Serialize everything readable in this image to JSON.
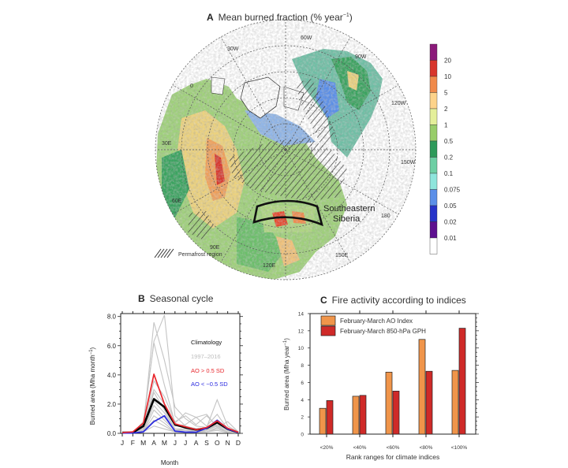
{
  "panel_a": {
    "letter": "A",
    "title": "Mean burned fraction (% year",
    "title_sup": "−1",
    "title_close": ")",
    "longitude_labels": [
      "60W",
      "30W",
      "90W",
      "0",
      "120W",
      "30E",
      "150W",
      "60E",
      "180",
      "90E",
      "150E",
      "120E"
    ],
    "region_label_line1": "Southeastern",
    "region_label_line2": "Siberia",
    "permafrost_legend": "Permafrost region",
    "colorbar": {
      "labels": [
        "20",
        "10",
        "5",
        "2",
        "1",
        "0.5",
        "0.2",
        "0.1",
        "0.075",
        "0.05",
        "0.02",
        "0.01"
      ],
      "colors": [
        "#8b1a7a",
        "#d8352c",
        "#f08a4b",
        "#fdd38a",
        "#e4ef9a",
        "#98cd6a",
        "#2e9a5a",
        "#6dcfa4",
        "#8ee5dc",
        "#5b8fe8",
        "#2633c9",
        "#5d0f8f",
        "#ffffff"
      ]
    }
  },
  "chart_data": [
    {
      "type": "line",
      "panel": "B",
      "title": "Seasonal cycle",
      "xlabel": "Month",
      "ylabel": "Burned area (Mha month",
      "ylabel_sup": "−1",
      "ylabel_close": ")",
      "categories": [
        "J",
        "F",
        "M",
        "A",
        "M",
        "J",
        "J",
        "A",
        "S",
        "O",
        "N",
        "D"
      ],
      "ylim": [
        0,
        8.2
      ],
      "yticks": [
        "0.0",
        "2.0",
        "4.0",
        "6.0",
        "8.0"
      ],
      "ytick_values": [
        0,
        2,
        4,
        6,
        8
      ],
      "legend": [
        {
          "label": "Climatology",
          "color": "#111111"
        },
        {
          "label": "1997–2016",
          "color": "#bdbdbd"
        },
        {
          "label": "AO > 0.5 SD",
          "color": "#e8282e"
        },
        {
          "label": "AO < −0.5 SD",
          "color": "#2a2ae0"
        }
      ],
      "series": [
        {
          "name": "Climatology",
          "color": "#000000",
          "values": [
            0.05,
            0.05,
            0.5,
            2.35,
            1.8,
            0.6,
            0.4,
            0.25,
            0.35,
            0.75,
            0.3,
            0.05
          ]
        },
        {
          "name": "AO > 0.5 SD",
          "color": "#e8282e",
          "values": [
            0.05,
            0.1,
            0.7,
            4.05,
            2.0,
            0.65,
            0.45,
            0.25,
            0.4,
            0.85,
            0.35,
            0.08
          ]
        },
        {
          "name": "AO < −0.5 SD",
          "color": "#2a2ae0",
          "values": [
            0.02,
            0.02,
            0.1,
            0.8,
            1.2,
            0.15,
            0.08,
            0.08,
            0.35,
            0.9,
            0.3,
            0.05
          ]
        }
      ],
      "years": [
        [
          0.05,
          0.05,
          0.4,
          7.6,
          5.0,
          1.8,
          1.0,
          0.5,
          0.4,
          2.3,
          0.5,
          0.1
        ],
        [
          0.05,
          0.08,
          0.6,
          6.3,
          8.1,
          1.2,
          0.5,
          0.3,
          0.3,
          0.6,
          0.2,
          0.05
        ],
        [
          0.05,
          0.05,
          0.8,
          6.2,
          3.3,
          0.7,
          1.4,
          1.1,
          1.3,
          0.4,
          0.8,
          0.1
        ],
        [
          0.02,
          0.05,
          0.3,
          3.6,
          2.5,
          0.8,
          1.2,
          0.6,
          1.2,
          0.5,
          0.3,
          0.05
        ],
        [
          0.02,
          0.03,
          0.3,
          3.0,
          2.0,
          0.5,
          0.6,
          1.1,
          0.5,
          1.3,
          0.3,
          0.05
        ],
        [
          0.02,
          0.02,
          0.3,
          2.8,
          1.6,
          0.3,
          0.3,
          0.2,
          0.3,
          0.9,
          0.3,
          0.05
        ],
        [
          0.02,
          0.02,
          0.2,
          2.2,
          1.4,
          0.3,
          0.2,
          0.2,
          0.2,
          0.8,
          0.2,
          0.05
        ],
        [
          0.02,
          0.02,
          0.2,
          1.9,
          1.1,
          0.2,
          0.2,
          0.1,
          0.2,
          0.6,
          0.2,
          0.02
        ],
        [
          0.02,
          0.02,
          0.1,
          1.6,
          0.9,
          0.2,
          0.1,
          0.1,
          0.2,
          0.5,
          0.1,
          0.02
        ],
        [
          0.02,
          0.02,
          0.1,
          1.2,
          0.7,
          0.1,
          0.1,
          0.1,
          0.1,
          0.4,
          0.1,
          0.02
        ],
        [
          0.02,
          0.02,
          0.1,
          0.9,
          0.5,
          0.1,
          0.1,
          0.1,
          0.1,
          0.3,
          0.1,
          0.02
        ],
        [
          0.02,
          0.02,
          0.1,
          0.5,
          0.3,
          0.1,
          0.05,
          0.05,
          0.1,
          0.2,
          0.05,
          0.02
        ]
      ]
    },
    {
      "type": "bar",
      "panel": "C",
      "title": "Fire activity according to indices",
      "xlabel": "Rank ranges for climate indices",
      "ylabel": "Burned area (Mha year",
      "ylabel_sup": "−1",
      "ylabel_close": ")",
      "categories": [
        "<20%",
        "<40%",
        "<60%",
        "<80%",
        "<100%"
      ],
      "ylim": [
        0,
        14
      ],
      "yticks": [
        0,
        2,
        4,
        6,
        8,
        10,
        12,
        14
      ],
      "legend_position": "top-left",
      "series": [
        {
          "name": "February-March AO Index",
          "color": "#f0954a",
          "values": [
            3.0,
            4.4,
            7.2,
            11.0,
            7.4
          ]
        },
        {
          "name": "February-March 850-hPa GPH",
          "color": "#cf2a28",
          "values": [
            3.9,
            4.5,
            5.0,
            7.3,
            12.3
          ]
        }
      ]
    }
  ]
}
